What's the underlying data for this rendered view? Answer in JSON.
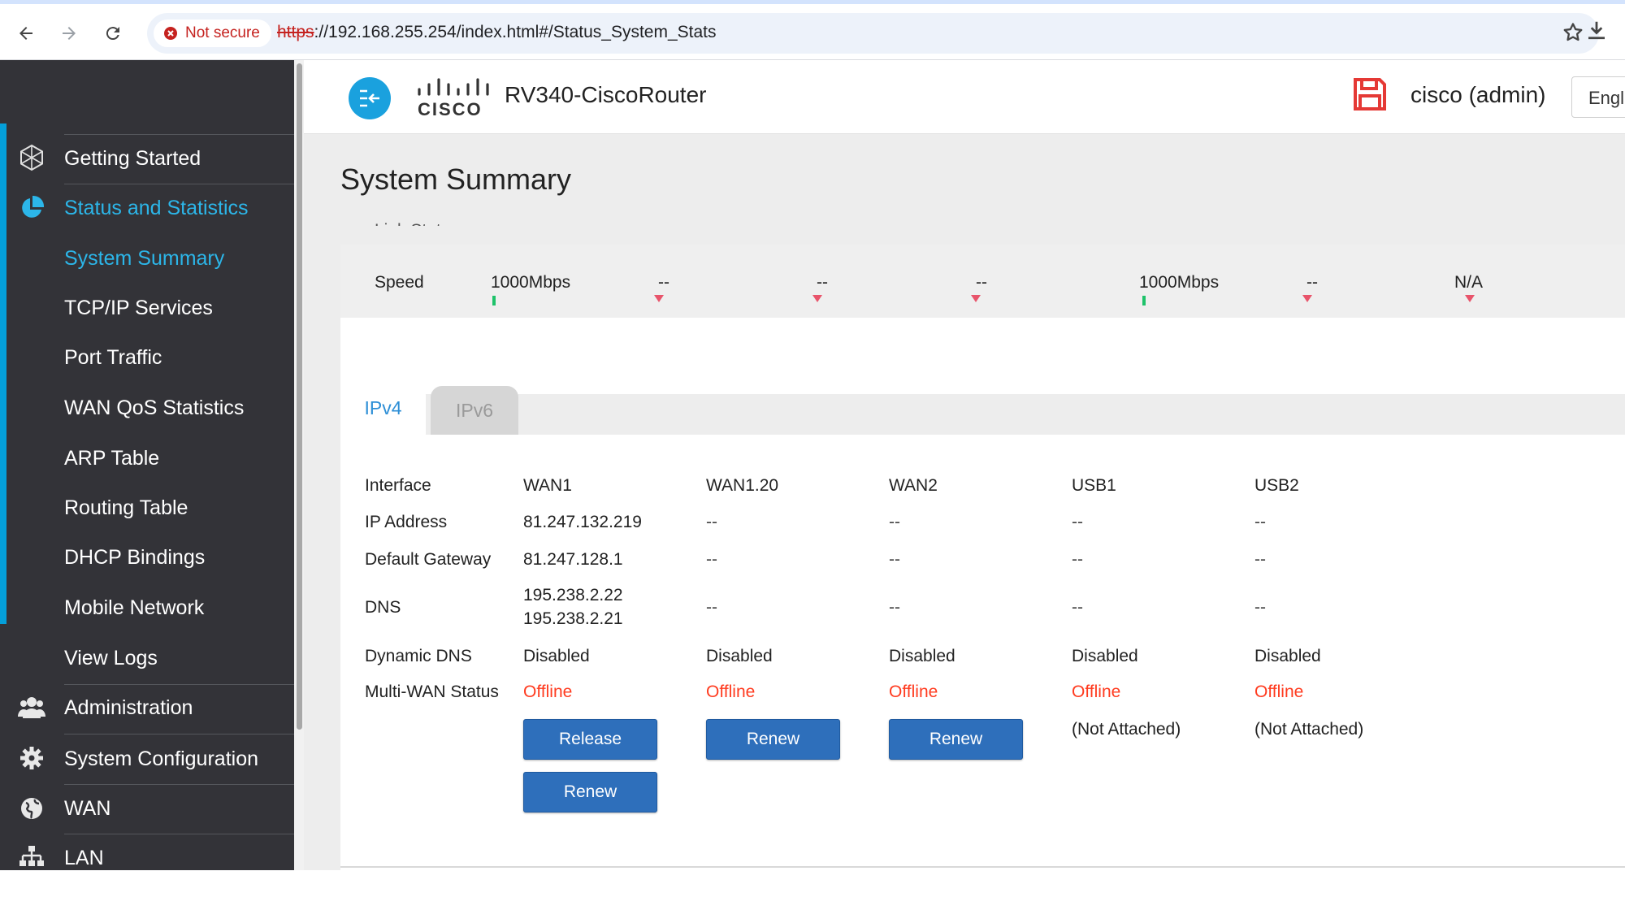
{
  "browser": {
    "security_label": "Not secure",
    "url_scheme": "https",
    "url_rest": "://192.168.255.254/index.html#/Status_System_Stats"
  },
  "sidebar": {
    "items": [
      {
        "label": "Getting Started",
        "icon": "getting-started-icon"
      },
      {
        "label": "Status and Statistics",
        "icon": "pie-chart-icon"
      },
      {
        "label": "System Summary"
      },
      {
        "label": "TCP/IP Services"
      },
      {
        "label": "Port Traffic"
      },
      {
        "label": "WAN QoS Statistics"
      },
      {
        "label": "ARP Table"
      },
      {
        "label": "Routing Table"
      },
      {
        "label": "DHCP Bindings"
      },
      {
        "label": "Mobile Network"
      },
      {
        "label": "View Logs"
      },
      {
        "label": "Administration",
        "icon": "users-icon"
      },
      {
        "label": "System Configuration",
        "icon": "gear-icon"
      },
      {
        "label": "WAN",
        "icon": "globe-icon"
      },
      {
        "label": "LAN",
        "icon": "network-icon"
      }
    ]
  },
  "header": {
    "logo_text": "CISCO",
    "title": "RV340-CiscoRouter",
    "user": "cisco (admin)",
    "language": "English"
  },
  "page": {
    "title": "System Summary"
  },
  "ports": {
    "link_label": "Link Status",
    "speed_label": "Speed",
    "speeds": [
      "1000Mbps",
      "--",
      "--",
      "--",
      "1000Mbps",
      "--",
      "N/A"
    ],
    "link_up": [
      true,
      false,
      false,
      false,
      true,
      false,
      false
    ]
  },
  "tabs": [
    {
      "label": "IPv4"
    },
    {
      "label": "IPv6"
    }
  ],
  "ipv4": {
    "row_labels": {
      "interface": "Interface",
      "ip": "IP Address",
      "gateway": "Default Gateway",
      "dns": "DNS",
      "ddns": "Dynamic DNS",
      "multiwan": "Multi-WAN Status"
    },
    "columns": [
      {
        "interface": "WAN1",
        "ip": "81.247.132.219",
        "gateway": "81.247.128.1",
        "dns1": "195.238.2.22",
        "dns2": "195.238.2.21",
        "ddns": "Disabled",
        "status": "Offline"
      },
      {
        "interface": "WAN1.20",
        "ip": "--",
        "gateway": "--",
        "dns": "--",
        "ddns": "Disabled",
        "status": "Offline"
      },
      {
        "interface": "WAN2",
        "ip": "--",
        "gateway": "--",
        "dns": "--",
        "ddns": "Disabled",
        "status": "Offline"
      },
      {
        "interface": "USB1",
        "ip": "--",
        "gateway": "--",
        "dns": "--",
        "ddns": "Disabled",
        "status": "Offline",
        "note": "(Not Attached)"
      },
      {
        "interface": "USB2",
        "ip": "--",
        "gateway": "--",
        "dns": "--",
        "ddns": "Disabled",
        "status": "Offline",
        "note": "(Not Attached)"
      }
    ],
    "buttons": {
      "wan1_release": "Release",
      "wan1_renew": "Renew",
      "wan120_renew": "Renew",
      "wan2_renew": "Renew"
    }
  },
  "colors": {
    "sidebar_bg": "#333338",
    "accent": "#049fd9",
    "offline": "#ff3b1f",
    "button": "#2e6fbb"
  }
}
